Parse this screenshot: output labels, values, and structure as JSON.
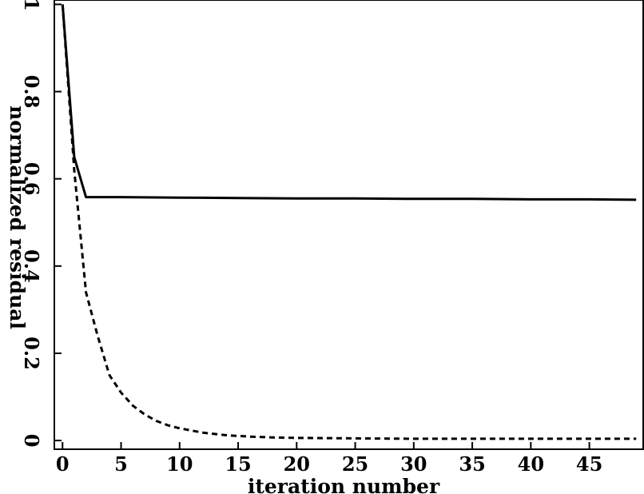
{
  "chart_data": {
    "type": "line",
    "title": "",
    "xlabel": "iteration number",
    "ylabel": "normalized residual",
    "xlim": [
      -0.7,
      49.6
    ],
    "ylim": [
      -0.02,
      1.01
    ],
    "grid": false,
    "legend": "none",
    "x_ticks": [
      0,
      5,
      10,
      15,
      20,
      25,
      30,
      35,
      40,
      45
    ],
    "x_tick_labels": [
      "0",
      "5",
      "10",
      "15",
      "20",
      "25",
      "30",
      "35",
      "40",
      "45"
    ],
    "y_ticks": [
      0,
      0.2,
      0.4,
      0.6,
      0.8,
      1
    ],
    "y_tick_labels": [
      "0",
      "0.2",
      "0.4",
      "0.6",
      "0.8",
      "1"
    ],
    "series": [
      {
        "style": "solid",
        "color": "#000000",
        "x": [
          0,
          1,
          2,
          5,
          10,
          15,
          20,
          25,
          30,
          35,
          40,
          45,
          49
        ],
        "values": [
          1.0,
          0.65,
          0.558,
          0.558,
          0.557,
          0.556,
          0.555,
          0.555,
          0.554,
          0.554,
          0.553,
          0.553,
          0.552
        ]
      },
      {
        "style": "dashed",
        "color": "#000000",
        "x": [
          0,
          1,
          2,
          3,
          4,
          5,
          6,
          7,
          8,
          9,
          10,
          12,
          14,
          16,
          18,
          20,
          25,
          30,
          35,
          40,
          45,
          49
        ],
        "values": [
          1.0,
          0.62,
          0.34,
          0.24,
          0.15,
          0.11,
          0.08,
          0.06,
          0.045,
          0.035,
          0.028,
          0.018,
          0.012,
          0.009,
          0.007,
          0.006,
          0.005,
          0.004,
          0.004,
          0.004,
          0.004,
          0.004
        ]
      }
    ]
  }
}
